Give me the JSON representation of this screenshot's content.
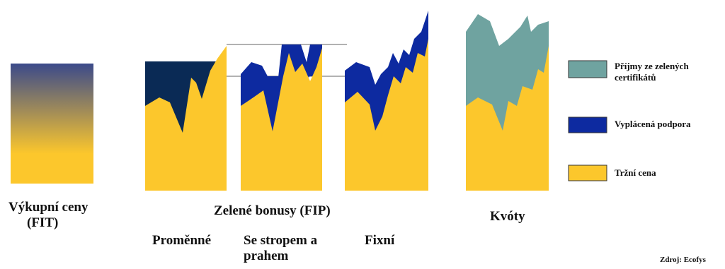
{
  "labels": {
    "fit_line1": "Výkupní ceny",
    "fit_line2": "(FIT)",
    "fip_group": "Zelené bonusy (FIP)",
    "fip_variable": "Proměnné",
    "fip_cap_line1": "Se stropem a",
    "fip_cap_line2": "prahem",
    "fip_fixed": "Fixní",
    "quota": "Kvóty",
    "source": "Zdroj: Ecofys"
  },
  "legend": [
    {
      "name": "green-certificates",
      "line1": "Příjmy ze zelených",
      "line2": "certifikátů",
      "color": "#6fa3a0"
    },
    {
      "name": "paid-support",
      "line1": "Vyplácená podpora",
      "line2": "",
      "color": "#0d2aa0"
    },
    {
      "name": "market-price",
      "line1": "Tržní cena",
      "line2": "",
      "color": "#fcc72c"
    }
  ],
  "colors": {
    "market": "#fcc72c",
    "support": "#0d2aa0",
    "support_dark": "#0a2a55",
    "certificates": "#6fa3a0",
    "fit_top": "#3b4a8a",
    "fit_bottom": "#fcc72c",
    "outline": "#333333"
  }
}
